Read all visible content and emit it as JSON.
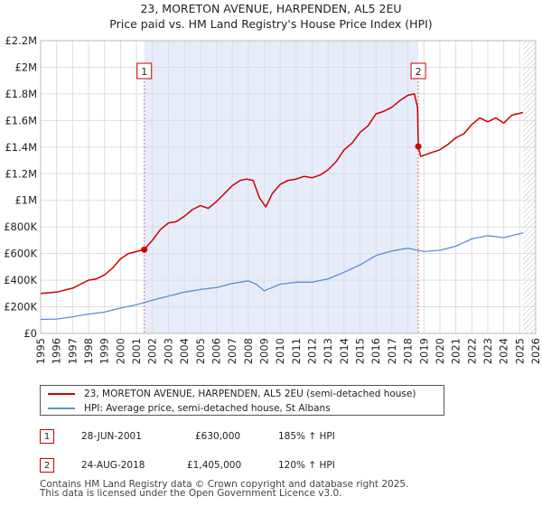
{
  "colors": {
    "property": "#cc0000",
    "hpi": "#5b8fd1",
    "shade": "#e6ecf9",
    "grid": "#dddddd",
    "sale_line": "#e07070"
  },
  "chart_data": {
    "type": "line",
    "title": "23, MORETON AVENUE, HARPENDEN, AL5 2EU",
    "subtitle": "Price paid vs. HM Land Registry's House Price Index (HPI)",
    "xlim": [
      1995,
      2026
    ],
    "ylim": [
      0,
      2200000
    ],
    "x_ticks": [
      "1995",
      "1996",
      "1997",
      "1998",
      "1999",
      "2000",
      "2001",
      "2002",
      "2003",
      "2004",
      "2005",
      "2006",
      "2007",
      "2008",
      "2009",
      "2010",
      "2011",
      "2012",
      "2013",
      "2014",
      "2015",
      "2016",
      "2017",
      "2018",
      "2019",
      "2020",
      "2021",
      "2022",
      "2023",
      "2024",
      "2025",
      "2026"
    ],
    "y_ticks": [
      {
        "value": 0,
        "label": "£0"
      },
      {
        "value": 200000,
        "label": "£200K"
      },
      {
        "value": 400000,
        "label": "£400K"
      },
      {
        "value": 600000,
        "label": "£600K"
      },
      {
        "value": 800000,
        "label": "£800K"
      },
      {
        "value": 1000000,
        "label": "£1M"
      },
      {
        "value": 1200000,
        "label": "£1.2M"
      },
      {
        "value": 1400000,
        "label": "£1.4M"
      },
      {
        "value": 1600000,
        "label": "£1.6M"
      },
      {
        "value": 1800000,
        "label": "£1.8M"
      },
      {
        "value": 2000000,
        "label": "£2M"
      },
      {
        "value": 2200000,
        "label": "£2.2M"
      }
    ],
    "shaded_range": [
      2001.49,
      2018.65
    ],
    "hatched_from": 2025.2,
    "series": [
      {
        "name": "23, MORETON AVENUE, HARPENDEN, AL5 2EU (semi-detached house)",
        "color": "#cc0000",
        "x": [
          1995,
          1996,
          1997,
          1997.5,
          1998,
          1998.5,
          1999,
          1999.5,
          2000,
          2000.5,
          2001,
          2001.49,
          2002,
          2002.5,
          2003,
          2003.5,
          2004,
          2004.5,
          2005,
          2005.5,
          2006,
          2006.5,
          2007,
          2007.5,
          2007.9,
          2008.3,
          2008.7,
          2009.1,
          2009.5,
          2010,
          2010.5,
          2011,
          2011.5,
          2012,
          2012.5,
          2013,
          2013.5,
          2014,
          2014.5,
          2015,
          2015.5,
          2016,
          2016.5,
          2017,
          2017.5,
          2018,
          2018.4,
          2018.6,
          2018.65,
          2018.8,
          2019.5,
          2020,
          2020.5,
          2021,
          2021.5,
          2022,
          2022.5,
          2023,
          2023.5,
          2024,
          2024.5,
          2025.2
        ],
        "y": [
          300000,
          310000,
          340000,
          370000,
          400000,
          410000,
          440000,
          490000,
          560000,
          600000,
          615000,
          630000,
          700000,
          780000,
          830000,
          840000,
          880000,
          930000,
          960000,
          940000,
          990000,
          1050000,
          1110000,
          1150000,
          1160000,
          1150000,
          1020000,
          950000,
          1050000,
          1120000,
          1150000,
          1160000,
          1180000,
          1170000,
          1190000,
          1230000,
          1290000,
          1380000,
          1430000,
          1510000,
          1560000,
          1650000,
          1670000,
          1700000,
          1750000,
          1790000,
          1800000,
          1700000,
          1405000,
          1330000,
          1360000,
          1380000,
          1420000,
          1470000,
          1500000,
          1570000,
          1620000,
          1590000,
          1620000,
          1580000,
          1640000,
          1660000
        ]
      },
      {
        "name": "HPI: Average price, semi-detached house, St Albans",
        "color": "#5b8fd1",
        "x": [
          1995,
          1996,
          1997,
          1998,
          1999,
          2000,
          2001,
          2002,
          2003,
          2004,
          2005,
          2006,
          2007,
          2008,
          2008.5,
          2009,
          2009.5,
          2010,
          2011,
          2012,
          2013,
          2014,
          2015,
          2016,
          2017,
          2018,
          2019,
          2020,
          2021,
          2022,
          2023,
          2024,
          2025.2
        ],
        "y": [
          105000,
          108000,
          125000,
          145000,
          160000,
          190000,
          215000,
          250000,
          280000,
          310000,
          330000,
          345000,
          375000,
          395000,
          370000,
          320000,
          345000,
          370000,
          385000,
          385000,
          410000,
          460000,
          515000,
          585000,
          620000,
          640000,
          615000,
          625000,
          655000,
          710000,
          735000,
          720000,
          755000
        ]
      }
    ],
    "sales": [
      {
        "id": "1",
        "x": 2001.49,
        "y": 630000
      },
      {
        "id": "2",
        "x": 2018.65,
        "y": 1405000
      }
    ]
  },
  "legend": {
    "property": "23, MORETON AVENUE, HARPENDEN, AL5 2EU (semi-detached house)",
    "hpi": "HPI: Average price, semi-detached house, St Albans"
  },
  "sales_table": [
    {
      "id": "1",
      "date": "28-JUN-2001",
      "price": "£630,000",
      "change": "185% ↑ HPI"
    },
    {
      "id": "2",
      "date": "24-AUG-2018",
      "price": "£1,405,000",
      "change": "120% ↑ HPI"
    }
  ],
  "footer": {
    "line1": "Contains HM Land Registry data © Crown copyright and database right 2025.",
    "line2": "This data is licensed under the Open Government Licence v3.0."
  }
}
